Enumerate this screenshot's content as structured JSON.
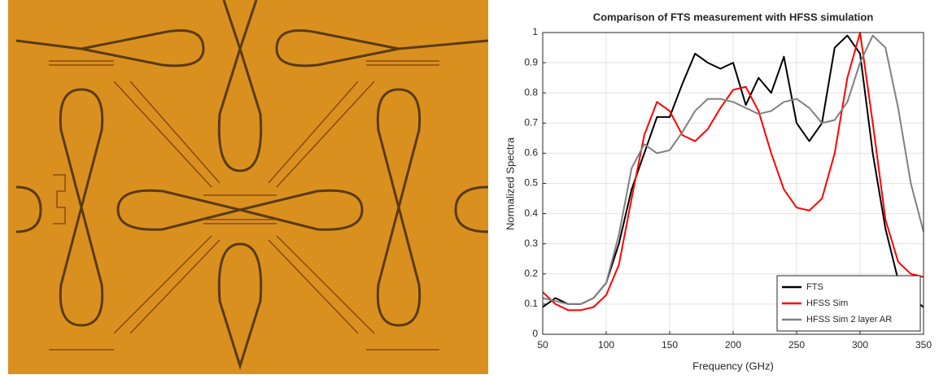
{
  "chart_data": {
    "type": "line",
    "title": "Comparison of FTS measurement with HFSS simulation",
    "x_label": "Frequency (GHz)",
    "y_label": "Normalized Spectra",
    "x": [
      50,
      60,
      70,
      80,
      90,
      100,
      110,
      120,
      130,
      140,
      150,
      160,
      170,
      180,
      190,
      200,
      210,
      220,
      230,
      240,
      250,
      260,
      270,
      280,
      290,
      300,
      310,
      320,
      330,
      340,
      350
    ],
    "series": [
      {
        "name": "FTS",
        "color": "#000000",
        "values": [
          0.09,
          0.12,
          0.1,
          0.1,
          0.12,
          0.17,
          0.3,
          0.48,
          0.6,
          0.72,
          0.72,
          0.83,
          0.93,
          0.9,
          0.88,
          0.9,
          0.76,
          0.85,
          0.8,
          0.92,
          0.7,
          0.64,
          0.7,
          0.95,
          0.99,
          0.93,
          0.6,
          0.35,
          0.18,
          0.12,
          0.09
        ]
      },
      {
        "name": "HFSS Sim",
        "color": "#ff0000",
        "values": [
          0.14,
          0.1,
          0.08,
          0.08,
          0.09,
          0.13,
          0.23,
          0.45,
          0.66,
          0.77,
          0.74,
          0.66,
          0.64,
          0.68,
          0.75,
          0.81,
          0.82,
          0.74,
          0.6,
          0.48,
          0.42,
          0.41,
          0.45,
          0.6,
          0.85,
          1.0,
          0.7,
          0.38,
          0.24,
          0.2,
          0.19
        ]
      },
      {
        "name": "HFSS Sim 2 layer AR",
        "color": "#808080",
        "values": [
          0.12,
          0.11,
          0.1,
          0.1,
          0.12,
          0.17,
          0.33,
          0.55,
          0.63,
          0.6,
          0.61,
          0.67,
          0.74,
          0.78,
          0.78,
          0.77,
          0.75,
          0.73,
          0.74,
          0.77,
          0.78,
          0.75,
          0.7,
          0.71,
          0.77,
          0.9,
          0.99,
          0.95,
          0.75,
          0.5,
          0.34
        ]
      }
    ],
    "xlim": [
      50,
      350
    ],
    "xticks": [
      50,
      100,
      150,
      200,
      250,
      300,
      350
    ],
    "ylim": [
      0,
      1
    ],
    "yticks": [
      0,
      0.1,
      0.2,
      0.3,
      0.4,
      0.5,
      0.6,
      0.7,
      0.8,
      0.9,
      1
    ],
    "grid": true,
    "legend": "lower-right"
  }
}
